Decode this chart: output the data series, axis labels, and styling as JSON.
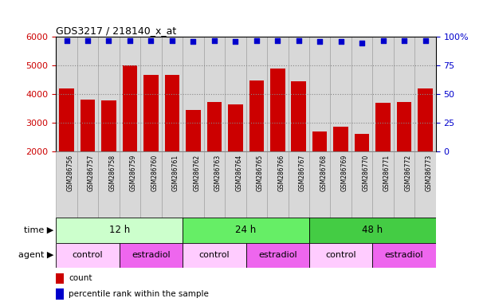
{
  "title": "GDS3217 / 218140_x_at",
  "samples": [
    "GSM286756",
    "GSM286757",
    "GSM286758",
    "GSM286759",
    "GSM286760",
    "GSM286761",
    "GSM286762",
    "GSM286763",
    "GSM286764",
    "GSM286765",
    "GSM286766",
    "GSM286767",
    "GSM286768",
    "GSM286769",
    "GSM286770",
    "GSM286771",
    "GSM286772",
    "GSM286773"
  ],
  "counts": [
    4200,
    3820,
    3780,
    5020,
    4680,
    4670,
    3450,
    3740,
    3650,
    4490,
    4890,
    4470,
    2700,
    2870,
    2630,
    3720,
    3730,
    4200
  ],
  "percentiles": [
    97,
    97,
    97,
    97,
    97,
    97,
    96,
    97,
    96,
    97,
    97,
    97,
    96,
    96,
    95,
    97,
    97,
    97
  ],
  "bar_color": "#cc0000",
  "dot_color": "#0000cc",
  "ylim_left": [
    2000,
    6000
  ],
  "ylim_right": [
    0,
    100
  ],
  "yticks_left": [
    2000,
    3000,
    4000,
    5000,
    6000
  ],
  "yticks_right": [
    0,
    25,
    50,
    75,
    100
  ],
  "grid_color": "#888888",
  "col_bg_color": "#d8d8d8",
  "col_border_color": "#999999",
  "time_groups": [
    {
      "label": "12 h",
      "start": 0,
      "end": 5,
      "color": "#ccffcc"
    },
    {
      "label": "24 h",
      "start": 6,
      "end": 11,
      "color": "#66ee66"
    },
    {
      "label": "48 h",
      "start": 12,
      "end": 17,
      "color": "#44cc44"
    }
  ],
  "agent_groups": [
    {
      "label": "control",
      "start": 0,
      "end": 2,
      "color": "#ffccff"
    },
    {
      "label": "estradiol",
      "start": 3,
      "end": 5,
      "color": "#ee66ee"
    },
    {
      "label": "control",
      "start": 6,
      "end": 8,
      "color": "#ffccff"
    },
    {
      "label": "estradiol",
      "start": 9,
      "end": 11,
      "color": "#ee66ee"
    },
    {
      "label": "control",
      "start": 12,
      "end": 14,
      "color": "#ffccff"
    },
    {
      "label": "estradiol",
      "start": 15,
      "end": 17,
      "color": "#ee66ee"
    }
  ],
  "tick_color_left": "#cc0000",
  "tick_color_right": "#0000cc",
  "legend_count_color": "#cc0000",
  "legend_dot_color": "#0000cc"
}
